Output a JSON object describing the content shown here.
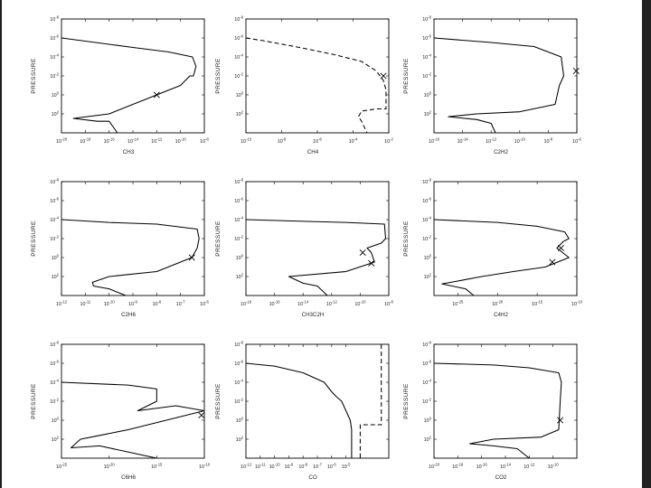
{
  "chart_data": [
    {
      "type": "line",
      "xlabel": "CH3",
      "ylabel": "PRESSURE",
      "x_scale": "log",
      "y_scale": "log",
      "y_inverted": true,
      "xlim": [
        1e-20,
        1e-08
      ],
      "ylim": [
        10000.0,
        1e-08
      ],
      "x_tick_labels": [
        "10^-20",
        "10^-18",
        "10^-16",
        "10^-14",
        "10^-12",
        "10^-10",
        "10^-8"
      ],
      "y_tick_labels": [
        "10^-8",
        "10^-6",
        "10^-4",
        "10^-2",
        "10^0",
        "10^2"
      ],
      "series": [
        {
          "style": "solid",
          "x": [
            1e-20,
            1e-14,
            1e-11,
            1e-09,
            2e-09,
            1.2e-09,
            6e-10,
            1e-10,
            1e-12,
            1e-16,
            1e-19,
            1e-17,
            1e-16,
            5e-16
          ],
          "y": [
            1e-06,
            1e-05,
            3e-05,
            0.0001,
            0.001,
            0.01,
            0.01,
            0.1,
            1.0,
            100.0,
            300.0,
            600.0,
            600.0,
            10000.0
          ]
        }
      ],
      "markers": [
        {
          "x": 1e-12,
          "y": 1.0
        }
      ]
    },
    {
      "type": "line",
      "xlabel": "CH4",
      "ylabel": "PRESSURE",
      "x_scale": "log",
      "y_scale": "log",
      "y_inverted": true,
      "xlim": [
        1e-10,
        0.01
      ],
      "ylim": [
        10000.0,
        1e-08
      ],
      "x_tick_labels": [
        "10^-10",
        "10^-8",
        "10^-6",
        "10^-4",
        "10^-2"
      ],
      "y_tick_labels": [
        "10^-8",
        "10^-6",
        "10^-4",
        "10^-2",
        "10^0",
        "10^2"
      ],
      "series": [
        {
          "style": "dashed",
          "x": [
            1e-10,
            1e-09,
            1e-07,
            1e-05,
            0.0003,
            0.002,
            0.005,
            0.007,
            0.007,
            0.002,
            0.0003,
            0.0002,
            0.0003,
            0.0006
          ],
          "y": [
            1e-06,
            2e-06,
            1e-05,
            6e-05,
            0.0003,
            0.003,
            0.03,
            0.3,
            30.0,
            30.0,
            50.0,
            200.0,
            600.0,
            10000.0
          ]
        }
      ],
      "markers": [
        {
          "x": 0.005,
          "y": 0.01
        }
      ]
    },
    {
      "type": "line",
      "xlabel": "C2H2",
      "ylabel": "PRESSURE",
      "x_scale": "log",
      "y_scale": "log",
      "y_inverted": true,
      "xlim": [
        1e-16,
        1e-06
      ],
      "ylim": [
        10000.0,
        1e-08
      ],
      "x_tick_labels": [
        "10^-16",
        "10^-14",
        "10^-12",
        "10^-10",
        "10^-8",
        "10^-6"
      ],
      "y_tick_labels": [
        "10^-8",
        "10^-6",
        "10^-4",
        "10^-2",
        "10^0",
        "10^2"
      ],
      "series": [
        {
          "style": "solid",
          "x": [
            1e-16,
            1e-12,
            1e-09,
            8e-08,
            1.2e-07,
            6e-08,
            3e-08,
            1e-10,
            1e-13,
            1e-15,
            1e-13,
            1e-12,
            2e-12
          ],
          "y": [
            1e-06,
            3e-06,
            8e-06,
            0.0001,
            0.01,
            0.1,
            10.0,
            60.0,
            100.0,
            200.0,
            400.0,
            1000.0,
            10000.0
          ]
        }
      ],
      "markers": [
        {
          "x": 9e-07,
          "y": 0.003
        }
      ]
    },
    {
      "type": "line",
      "xlabel": "C2H6",
      "ylabel": "PRESSURE",
      "x_scale": "log",
      "y_scale": "log",
      "y_inverted": true,
      "xlim": [
        1e-12,
        1e-06
      ],
      "ylim": [
        10000.0,
        1e-08
      ],
      "x_tick_labels": [
        "10^-12",
        "10^-11",
        "10^-10",
        "10^-9",
        "10^-8",
        "10^-7",
        "10^-6"
      ],
      "y_tick_labels": [
        "10^-8",
        "10^-6",
        "10^-4",
        "10^-2",
        "10^0",
        "10^2"
      ],
      "series": [
        {
          "style": "solid",
          "x": [
            1e-12,
            1e-10,
            1e-08,
            5e-07,
            6e-07,
            5e-07,
            3e-07,
            1e-08,
            1e-10,
            2e-11,
            2.2e-11,
            1e-10,
            5e-10
          ],
          "y": [
            0.0001,
            0.0002,
            0.0003,
            0.001,
            0.01,
            0.1,
            1.0,
            30.0,
            100.0,
            400.0,
            1000.0,
            2000.0,
            10000.0
          ]
        }
      ],
      "markers": [
        {
          "x": 3e-07,
          "y": 1.0
        }
      ]
    },
    {
      "type": "line",
      "xlabel": "CH3C2H",
      "ylabel": "PRESSURE",
      "x_scale": "log",
      "y_scale": "log",
      "y_inverted": true,
      "xlim": [
        1e-18,
        1e-08
      ],
      "ylim": [
        10000.0,
        1e-08
      ],
      "x_tick_labels": [
        "10^-18",
        "10^-16",
        "10^-14",
        "10^-12",
        "10^-10",
        "10^-8"
      ],
      "y_tick_labels": [
        "10^-8",
        "10^-6",
        "10^-4",
        "10^-2",
        "10^0",
        "10^2"
      ],
      "series": [
        {
          "style": "solid",
          "x": [
            1e-18,
            1e-14,
            1e-11,
            5e-09,
            6e-09,
            3e-09,
            3e-10,
            6e-10,
            1e-09,
            1e-11,
            1e-15,
            1e-14,
            1e-13,
            5e-13
          ],
          "y": [
            0.0001,
            0.00015,
            0.0002,
            0.0003,
            0.01,
            0.03,
            0.1,
            0.3,
            3.0,
            30.0,
            100.0,
            500.0,
            1000.0,
            10000.0
          ]
        }
      ],
      "markers": [
        {
          "x": 1.5e-10,
          "y": 0.3
        },
        {
          "x": 6e-10,
          "y": 4.0
        }
      ]
    },
    {
      "type": "line",
      "xlabel": "C4H2",
      "ylabel": "PRESSURE",
      "x_scale": "log",
      "y_scale": "log",
      "y_inverted": true,
      "xlim": [
        1e-28,
        1e-10
      ],
      "ylim": [
        10000.0,
        1e-08
      ],
      "x_tick_labels": [
        "10^-25",
        "10^-20",
        "10^-15",
        "10^-10"
      ],
      "y_tick_labels": [
        "10^-8",
        "10^-6",
        "10^-4",
        "10^-2",
        "10^0",
        "10^2"
      ],
      "series": [
        {
          "style": "solid",
          "x": [
            1e-28,
            1e-20,
            1e-15,
            3e-12,
            1e-11,
            2e-12,
            3e-13,
            1e-11,
            1e-14,
            1e-18,
            1e-22,
            1e-25,
            1e-27,
            1e-24,
            1e-23
          ],
          "y": [
            0.0001,
            0.0002,
            0.0005,
            0.002,
            0.01,
            0.02,
            0.1,
            1.0,
            10.0,
            30.0,
            100.0,
            300.0,
            600.0,
            2000.0,
            10000.0
          ]
        }
      ],
      "markers": [
        {
          "x": 1e-12,
          "y": 0.1
        },
        {
          "x": 8e-14,
          "y": 3.0
        }
      ]
    },
    {
      "type": "line",
      "xlabel": "C6H6",
      "ylabel": "PRESSURE",
      "x_scale": "log",
      "y_scale": "log",
      "y_inverted": true,
      "xlim": [
        1e-25,
        1e-10
      ],
      "ylim": [
        10000.0,
        1e-08
      ],
      "x_tick_labels": [
        "10^-25",
        "10^-20",
        "10^-15",
        "10^-10"
      ],
      "y_tick_labels": [
        "10^-8",
        "10^-6",
        "10^-4",
        "10^-2",
        "10^0",
        "10^2"
      ],
      "series": [
        {
          "style": "solid",
          "x": [
            1e-25,
            1e-18,
            1e-15,
            1e-15,
            1e-17,
            1e-13,
            1e-10,
            1e-14,
            1e-18,
            1e-21,
            1e-23,
            1e-24,
            1e-21,
            1e-15
          ],
          "y": [
            0.0001,
            0.0002,
            0.0005,
            0.01,
            0.1,
            0.03,
            0.1,
            1.0,
            10.0,
            40.0,
            100.0,
            800.0,
            500.0,
            10000.0
          ]
        }
      ],
      "markers": [
        {
          "x": 5e-11,
          "y": 0.3
        }
      ]
    },
    {
      "type": "line",
      "xlabel": "CO",
      "ylabel": "PRESSURE",
      "x_scale": "log",
      "y_scale": "log",
      "y_inverted": true,
      "xlim": [
        1e-12,
        0.01
      ],
      "ylim": [
        10000.0,
        1e-08
      ],
      "x_tick_labels": [
        "10^-12",
        "10^-11",
        "10^-10",
        "10^-9",
        "10^-8",
        "10^-7",
        "10^-6",
        "10^-5"
      ],
      "y_tick_labels": [
        "10^-8",
        "10^-6",
        "10^-4",
        "10^-2",
        "10^0",
        "10^2"
      ],
      "series": [
        {
          "style": "solid",
          "x": [
            1e-12,
            1e-10,
            1e-08,
            3e-07,
            1e-06,
            2e-06,
            3e-06,
            5e-06,
            1e-05,
            2e-05,
            2.5e-05,
            2.5e-05
          ],
          "y": [
            1e-06,
            2e-06,
            1e-05,
            0.0001,
            0.001,
            0.003,
            0.005,
            0.01,
            0.1,
            1.0,
            10.0,
            10000.0
          ]
        },
        {
          "style": "dashed",
          "x": [
            0.003,
            0.003,
            0.0001,
            0.0001
          ],
          "y": [
            1e-08,
            3.0,
            3.0,
            10000.0
          ]
        }
      ],
      "markers": []
    },
    {
      "type": "line",
      "xlabel": "CO2",
      "ylabel": "PRESSURE",
      "x_scale": "log",
      "y_scale": "log",
      "y_inverted": true,
      "xlim": [
        1e-20,
        1e-08
      ],
      "ylim": [
        10000.0,
        1e-08
      ],
      "x_tick_labels": [
        "10^-20",
        "10^-18",
        "10^-16",
        "10^-14",
        "10^-12",
        "10^-10"
      ],
      "y_tick_labels": [
        "10^-8",
        "10^-6",
        "10^-4",
        "10^-2",
        "10^0",
        "10^2"
      ],
      "series": [
        {
          "style": "solid",
          "x": [
            1e-20,
            1e-15,
            1e-12,
            3e-10,
            5e-10,
            4e-10,
            3e-10,
            1e-11,
            1e-15,
            1e-17,
            1e-15,
            1e-13,
            1e-12
          ],
          "y": [
            1e-06,
            1.5e-06,
            3e-06,
            1e-05,
            0.0001,
            0.01,
            10.0,
            60.0,
            100.0,
            300.0,
            500.0,
            1000.0,
            10000.0
          ]
        }
      ],
      "markers": [
        {
          "x": 4e-10,
          "y": 1.0
        }
      ]
    }
  ]
}
